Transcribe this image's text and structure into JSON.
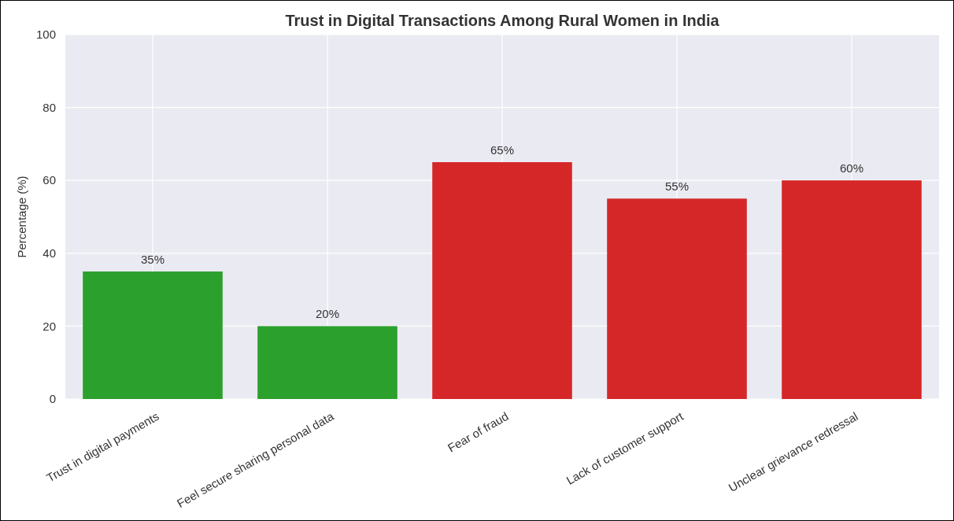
{
  "chart_data": {
    "type": "bar",
    "title": "Trust in Digital Transactions Among Rural Women in India",
    "ylabel": "Percentage (%)",
    "categories": [
      "Trust in digital payments",
      "Feel secure sharing personal data",
      "Fear of fraud",
      "Lack of customer support",
      "Unclear grievance redressal"
    ],
    "values": [
      35,
      20,
      65,
      55,
      60
    ],
    "colors": [
      "#2ca02c",
      "#2ca02c",
      "#d62728",
      "#d62728",
      "#d62728"
    ],
    "value_labels": [
      "35%",
      "20%",
      "65%",
      "55%",
      "60%"
    ],
    "ylim": [
      0,
      100
    ],
    "yticks": [
      0,
      20,
      40,
      60,
      80,
      100
    ],
    "grid": true
  }
}
